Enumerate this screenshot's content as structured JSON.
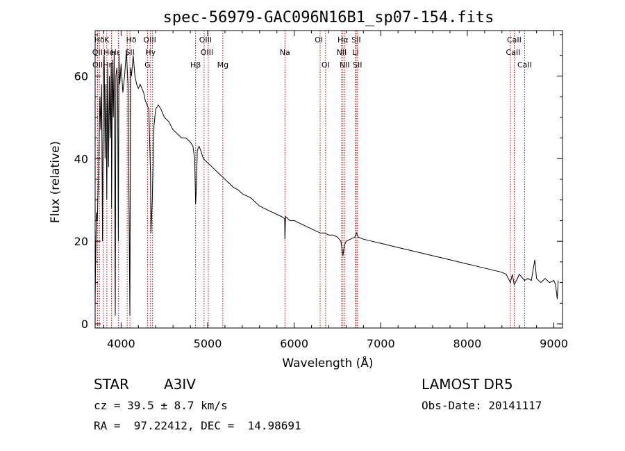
{
  "chart_data": {
    "type": "line",
    "title": "spec-56979-GAC096N16B1_sp07-154.fits",
    "xlabel": "Wavelength (Å)",
    "ylabel": "Flux (relative)",
    "xlim": [
      3700,
      9100
    ],
    "ylim": [
      -1,
      71
    ],
    "xticks": [
      4000,
      5000,
      6000,
      7000,
      8000,
      9000
    ],
    "yticks": [
      0,
      20,
      40,
      60
    ],
    "grid": false,
    "series": [
      {
        "x": [
          3700,
          3705,
          3715,
          3725,
          3735,
          3745,
          3755,
          3765,
          3775,
          3785,
          3795,
          3805,
          3815,
          3825,
          3835,
          3845,
          3855,
          3865,
          3875,
          3885,
          3890,
          3900,
          3910,
          3920,
          3933,
          3940,
          3950,
          3960,
          3968,
          3975,
          3985,
          4000,
          4020,
          4040,
          4060,
          4080,
          4101,
          4110,
          4120,
          4140,
          4160,
          4180,
          4200,
          4220,
          4240,
          4260,
          4280,
          4300,
          4320,
          4340,
          4345,
          4360,
          4380,
          4400,
          4430,
          4460,
          4500,
          4550,
          4600,
          4650,
          4700,
          4750,
          4800,
          4830,
          4850,
          4861,
          4870,
          4880,
          4900,
          4920,
          4950,
          5000,
          5050,
          5100,
          5150,
          5200,
          5250,
          5300,
          5350,
          5400,
          5450,
          5500,
          5550,
          5600,
          5650,
          5700,
          5750,
          5800,
          5850,
          5890,
          5893,
          5900,
          5950,
          6000,
          6050,
          6100,
          6150,
          6200,
          6250,
          6300,
          6350,
          6400,
          6450,
          6500,
          6540,
          6563,
          6580,
          6600,
          6650,
          6700,
          6720,
          6740,
          6800,
          6900,
          7000,
          7100,
          7200,
          7300,
          7400,
          7500,
          7600,
          7700,
          7800,
          7900,
          8000,
          8100,
          8200,
          8300,
          8400,
          8450,
          8498,
          8520,
          8542,
          8580,
          8600,
          8662,
          8700,
          8740,
          8760,
          8780,
          8800,
          8850,
          8900,
          8950,
          9000,
          9020,
          9040,
          9050
        ],
        "y": [
          5,
          14,
          27,
          25,
          33,
          42,
          55,
          47,
          58,
          20,
          60,
          65,
          40,
          58,
          30,
          62,
          38,
          60,
          45,
          63,
          28,
          64,
          50,
          66,
          2,
          60,
          62,
          58,
          20,
          65,
          58,
          63,
          56,
          60,
          66,
          58,
          2,
          62,
          60,
          65,
          60,
          58,
          57,
          58,
          57,
          56,
          54,
          53,
          52,
          36,
          22,
          30,
          48,
          52,
          53,
          52,
          50,
          49,
          47,
          46,
          45,
          45,
          44,
          43,
          40,
          29,
          33,
          42,
          43,
          42,
          40,
          39,
          38,
          37,
          36,
          35,
          34,
          33,
          32.5,
          31.5,
          31,
          30.5,
          29.5,
          28.5,
          28,
          27.5,
          27,
          26.5,
          26,
          25.5,
          20.5,
          26,
          25,
          25,
          24.5,
          24,
          23.5,
          23,
          22.5,
          22,
          22,
          21.5,
          21.5,
          21,
          20,
          16.5,
          19,
          20,
          20.5,
          21,
          22,
          21,
          20.5,
          20,
          19.5,
          19,
          18.5,
          18,
          17.5,
          17,
          16.5,
          16,
          15.5,
          15,
          14.5,
          14,
          13.5,
          13,
          12.5,
          12,
          10,
          12,
          9.5,
          11,
          12,
          10.5,
          11,
          10.5,
          13,
          15.5,
          11,
          10,
          11,
          10,
          10.5,
          9.5,
          6,
          10.5
        ]
      }
    ],
    "lines": [
      {
        "label": "Hδ",
        "x": 3750,
        "row": 1,
        "dx": 0
      },
      {
        "label": "K",
        "x": 3795,
        "row": 1,
        "dx": 5
      },
      {
        "label": "Hδ",
        "x": 4102,
        "row": 1,
        "dx": 2
      },
      {
        "label": "OIII",
        "x": 4363,
        "row": 1,
        "dx": -4
      },
      {
        "label": "OIII",
        "x": 5007,
        "row": 1,
        "dx": -4
      },
      {
        "label": "OI",
        "x": 6300,
        "row": 1,
        "dx": -2
      },
      {
        "label": "Hα",
        "x": 6563,
        "row": 1,
        "dx": 0
      },
      {
        "label": "SII",
        "x": 6716,
        "row": 1,
        "dx": 0
      },
      {
        "label": "CaII",
        "x": 8542,
        "row": 1,
        "dx": 0
      },
      {
        "label": "OII",
        "x": 3727,
        "row": 2,
        "dx": 0
      },
      {
        "label": "He",
        "x": 3889,
        "row": 2,
        "dx": -4
      },
      {
        "label": "Hε",
        "x": 3970,
        "row": 2,
        "dx": -4
      },
      {
        "label": "SII",
        "x": 4070,
        "row": 2,
        "dx": 4
      },
      {
        "label": "Hγ",
        "x": 4340,
        "row": 2,
        "dx": 0
      },
      {
        "label": "OIII",
        "x": 4959,
        "row": 2,
        "dx": 4
      },
      {
        "label": "Na",
        "x": 5893,
        "row": 2,
        "dx": 0
      },
      {
        "label": "NII",
        "x": 6548,
        "row": 2,
        "dx": 0
      },
      {
        "label": "Li",
        "x": 6708,
        "row": 2,
        "dx": 0
      },
      {
        "label": "CaII",
        "x": 8498,
        "row": 2,
        "dx": 4
      },
      {
        "label": "OII",
        "x": 3729,
        "row": 3,
        "dx": 0
      },
      {
        "label": "Hη",
        "x": 3835,
        "row": 3,
        "dx": 2
      },
      {
        "label": "G",
        "x": 4305,
        "row": 3,
        "dx": 0
      },
      {
        "label": "Hβ",
        "x": 4861,
        "row": 3,
        "dx": 0
      },
      {
        "label": "Mg",
        "x": 5175,
        "row": 3,
        "dx": 0
      },
      {
        "label": "OI",
        "x": 6363,
        "row": 3,
        "dx": 0
      },
      {
        "label": "NII",
        "x": 6583,
        "row": 3,
        "dx": 0
      },
      {
        "label": "SII",
        "x": 6731,
        "row": 3,
        "dx": 0
      },
      {
        "label": "CaII",
        "x": 8662,
        "row": 3,
        "dx": 0
      }
    ],
    "line_color": "#c00000"
  },
  "info": {
    "star": "STAR",
    "class": "A3IV",
    "survey": "LAMOST DR5",
    "cz": "cz = 39.5 ± 8.7 km/s",
    "obsdate": "Obs-Date: 20141117",
    "radec": "RA =  97.22412, DEC =  14.98691"
  }
}
